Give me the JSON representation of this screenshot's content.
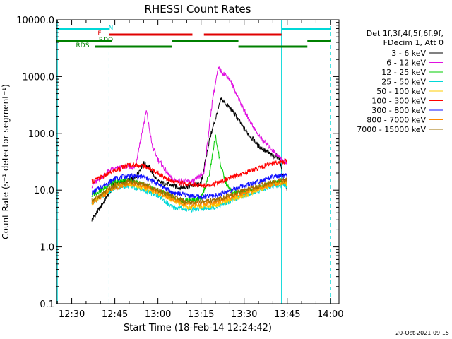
{
  "chart_data": {
    "type": "line",
    "title": "RHESSI Count Rates",
    "xlabel": "Start Time (18-Feb-14 12:24:42)",
    "ylabel": "Count Rate (s⁻¹ detector segment⁻¹)",
    "y_scale": "log",
    "ylim": [
      0.1,
      10000
    ],
    "xlim": [
      "12:24:42",
      "14:03:00"
    ],
    "x_ticks": [
      "12:30",
      "12:45",
      "13:00",
      "13:15",
      "13:30",
      "13:45",
      "14:00"
    ],
    "y_ticks": [
      "0.1",
      "1.0",
      "10.0",
      "100.0",
      "1000.0",
      "10000.0"
    ],
    "legend_header": [
      "Det 1f,3f,4f,5f,6f,9f,",
      "FDecim 1, Att 0"
    ],
    "legend_position": "right",
    "series": [
      {
        "name": "3 - 6 keV",
        "color": "#000000",
        "points": [
          [
            "12:37",
            3
          ],
          [
            "12:40",
            5
          ],
          [
            "12:45",
            13
          ],
          [
            "12:52",
            16
          ],
          [
            "12:55",
            30
          ],
          [
            "12:57",
            25
          ],
          [
            "13:00",
            14
          ],
          [
            "13:08",
            11
          ],
          [
            "13:15",
            13
          ],
          [
            "13:18",
            80
          ],
          [
            "13:22",
            400
          ],
          [
            "13:26",
            250
          ],
          [
            "13:30",
            120
          ],
          [
            "13:35",
            60
          ],
          [
            "13:40",
            40
          ],
          [
            "13:42",
            40
          ],
          [
            "13:44",
            14
          ],
          [
            "13:45",
            10
          ]
        ]
      },
      {
        "name": "6 - 12 keV",
        "color": "#e010e0",
        "points": [
          [
            "12:37",
            12
          ],
          [
            "12:43",
            22
          ],
          [
            "12:48",
            26
          ],
          [
            "12:52",
            25
          ],
          [
            "12:56",
            250
          ],
          [
            "12:58",
            60
          ],
          [
            "13:00",
            35
          ],
          [
            "13:05",
            15
          ],
          [
            "13:12",
            14
          ],
          [
            "13:16",
            20
          ],
          [
            "13:19",
            400
          ],
          [
            "13:21",
            1400
          ],
          [
            "13:25",
            900
          ],
          [
            "13:30",
            250
          ],
          [
            "13:35",
            90
          ],
          [
            "13:40",
            50
          ],
          [
            "13:43",
            35
          ],
          [
            "13:45",
            30
          ]
        ]
      },
      {
        "name": "12 - 25 keV",
        "color": "#00cc00",
        "points": [
          [
            "12:37",
            8
          ],
          [
            "12:45",
            14
          ],
          [
            "12:50",
            15
          ],
          [
            "13:00",
            10
          ],
          [
            "13:08",
            6.5
          ],
          [
            "13:15",
            7
          ],
          [
            "13:18",
            20
          ],
          [
            "13:20",
            90
          ],
          [
            "13:22",
            25
          ],
          [
            "13:24",
            12
          ],
          [
            "13:26",
            9
          ],
          [
            "13:30",
            9
          ],
          [
            "13:40",
            14
          ],
          [
            "13:45",
            14
          ]
        ]
      },
      {
        "name": "25 - 50 keV",
        "color": "#00d8d8",
        "points": [
          [
            "12:37",
            6
          ],
          [
            "12:45",
            11
          ],
          [
            "12:50",
            12
          ],
          [
            "13:00",
            8
          ],
          [
            "13:05",
            5
          ],
          [
            "13:12",
            4.5
          ],
          [
            "13:20",
            5
          ],
          [
            "13:30",
            8
          ],
          [
            "13:40",
            12
          ],
          [
            "13:45",
            12
          ]
        ]
      },
      {
        "name": "50 - 100 keV",
        "color": "#ffcc00",
        "points": [
          [
            "12:37",
            6
          ],
          [
            "12:45",
            12
          ],
          [
            "12:50",
            13
          ],
          [
            "13:00",
            9
          ],
          [
            "13:10",
            5
          ],
          [
            "13:20",
            5.5
          ],
          [
            "13:30",
            8
          ],
          [
            "13:40",
            13
          ],
          [
            "13:45",
            13
          ]
        ]
      },
      {
        "name": "100 - 300 keV",
        "color": "#ff0000",
        "points": [
          [
            "12:37",
            14
          ],
          [
            "12:45",
            22
          ],
          [
            "12:50",
            28
          ],
          [
            "12:55",
            27
          ],
          [
            "13:00",
            20
          ],
          [
            "13:05",
            14
          ],
          [
            "13:15",
            12
          ],
          [
            "13:20",
            13
          ],
          [
            "13:30",
            20
          ],
          [
            "13:40",
            30
          ],
          [
            "13:45",
            32
          ]
        ]
      },
      {
        "name": "300 - 800 keV",
        "color": "#1010ff",
        "points": [
          [
            "12:37",
            9
          ],
          [
            "12:45",
            16
          ],
          [
            "12:50",
            18
          ],
          [
            "12:55",
            17
          ],
          [
            "13:00",
            13
          ],
          [
            "13:05",
            9
          ],
          [
            "13:15",
            7.5
          ],
          [
            "13:20",
            8
          ],
          [
            "13:30",
            12
          ],
          [
            "13:40",
            17
          ],
          [
            "13:45",
            18
          ]
        ]
      },
      {
        "name": "800 - 7000 keV",
        "color": "#ff8800",
        "points": [
          [
            "12:37",
            6
          ],
          [
            "12:45",
            11
          ],
          [
            "12:50",
            13
          ],
          [
            "12:55",
            12
          ],
          [
            "13:00",
            9
          ],
          [
            "13:10",
            5.5
          ],
          [
            "13:20",
            6
          ],
          [
            "13:30",
            9
          ],
          [
            "13:40",
            13
          ],
          [
            "13:45",
            14
          ]
        ]
      },
      {
        "name": "7000 - 15000 keV",
        "color": "#a07000",
        "points": [
          [
            "12:37",
            6.5
          ],
          [
            "12:45",
            12
          ],
          [
            "12:50",
            14
          ],
          [
            "12:55",
            13
          ],
          [
            "13:00",
            10
          ],
          [
            "13:10",
            6
          ],
          [
            "13:20",
            6.5
          ],
          [
            "13:30",
            10
          ],
          [
            "13:40",
            14
          ],
          [
            "13:45",
            15
          ]
        ]
      }
    ],
    "flag_bars": [
      {
        "label": "N",
        "color": "#00d8d8",
        "segments": [
          [
            "12:25",
            "12:43"
          ],
          [
            "13:43",
            "14:00"
          ]
        ]
      },
      {
        "label": "F",
        "color": "#e00000",
        "segments": [
          [
            "12:43",
            "13:12"
          ],
          [
            "13:16",
            "13:43"
          ]
        ]
      },
      {
        "label": "RDO",
        "color": "#008000",
        "segments": [
          [
            "12:24:42",
            "12:44"
          ],
          [
            "13:05",
            "13:28"
          ],
          [
            "13:52",
            "14:00"
          ]
        ]
      },
      {
        "label": "RDS",
        "color": "#008000",
        "segments": [
          [
            "12:38",
            "13:05"
          ],
          [
            "13:28",
            "13:52"
          ]
        ]
      }
    ],
    "vertical_lines": [
      {
        "time": "12:25",
        "color": "#00d8d8",
        "style": "solid"
      },
      {
        "time": "12:43",
        "color": "#00d8d8",
        "style": "dashed"
      },
      {
        "time": "13:43",
        "color": "#00d8d8",
        "style": "solid"
      },
      {
        "time": "14:00",
        "color": "#00d8d8",
        "style": "dashed"
      }
    ]
  },
  "footer": {
    "timestamp": "20-Oct-2021 09:15"
  }
}
